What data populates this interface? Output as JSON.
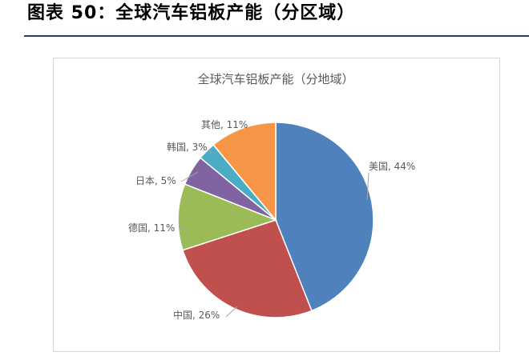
{
  "figure": {
    "title": "图表 50：全球汽车铝板产能（分区域）"
  },
  "chart_data": {
    "type": "pie",
    "title": "全球汽车铝板产能（分地域）",
    "start_angle_deg": 0,
    "direction": "clockwise",
    "slices": [
      {
        "label": "美国",
        "value": 44,
        "text": "美国, 44%",
        "color": "#4f81bd"
      },
      {
        "label": "中国",
        "value": 26,
        "text": "中国, 26%",
        "color": "#c0504d"
      },
      {
        "label": "德国",
        "value": 11,
        "text": "德国, 11%",
        "color": "#9bbb59"
      },
      {
        "label": "日本",
        "value": 5,
        "text": "日本, 5%",
        "color": "#8064a2"
      },
      {
        "label": "韩国",
        "value": 3,
        "text": "韩国, 3%",
        "color": "#4bacc6"
      },
      {
        "label": "其他",
        "value": 11,
        "text": "其他, 11%",
        "color": "#f79646"
      }
    ]
  }
}
